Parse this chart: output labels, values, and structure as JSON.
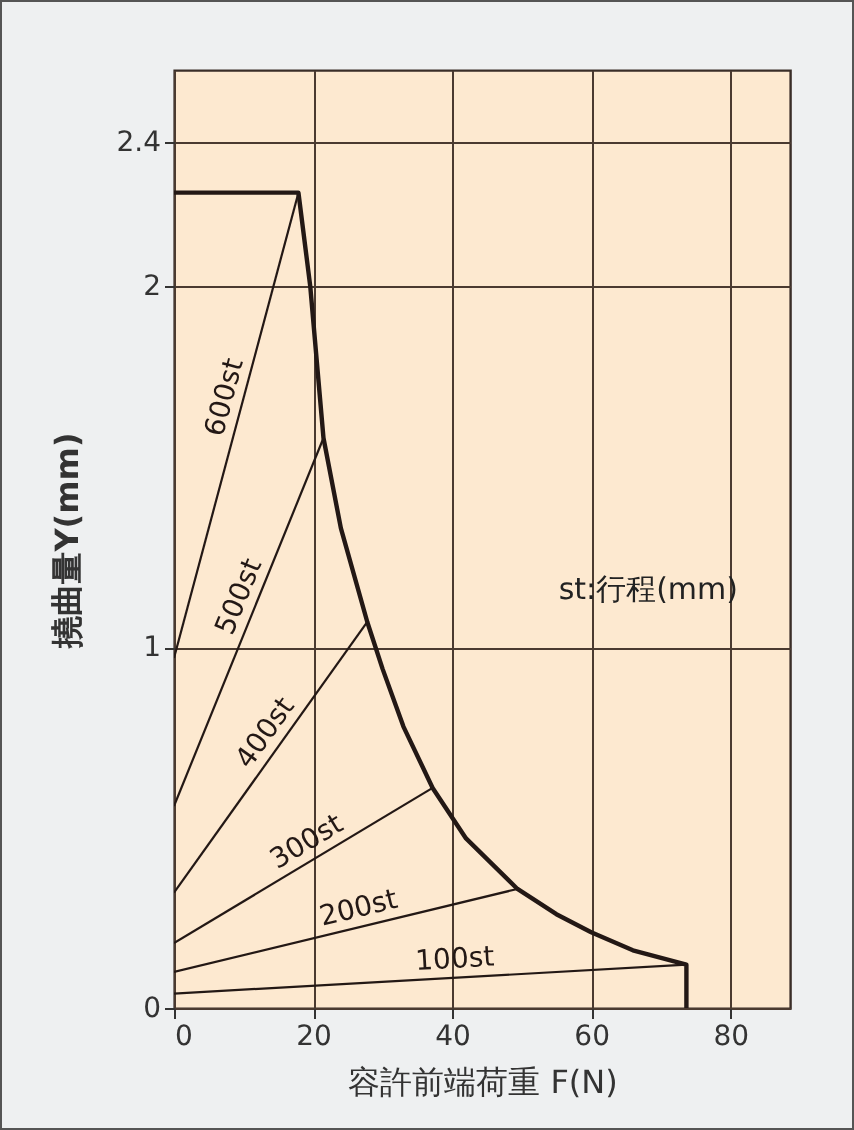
{
  "chart_data": {
    "type": "line",
    "xlabel": "容許前端荷重 F(N)",
    "ylabel": "撓曲量Y(mm)",
    "annotations": [
      "st:行程(mm)"
    ],
    "xlim": [
      0,
      88.6
    ],
    "ylim": [
      0,
      2.6
    ],
    "xticks": [
      0,
      20,
      40,
      60,
      80
    ],
    "yticks": [
      0,
      1,
      2,
      2.4
    ],
    "grid": true,
    "line_style": "solid",
    "marker": "none",
    "series": [
      {
        "color": "#231815",
        "x": [
          0,
          17.9,
          19.6,
          21.5,
          24,
          27.8,
          30,
          33,
          37.2,
          42,
          49.4,
          55,
          60,
          66,
          73.7,
          73.7
        ],
        "values": [
          2.26,
          2.26,
          2.0,
          1.58,
          1.33,
          1.07,
          0.94,
          0.78,
          0.61,
          0.47,
          0.33,
          0.26,
          0.21,
          0.16,
          0.12,
          0
        ]
      },
      {
        "name": "600st",
        "color": "#231815",
        "x": [
          0,
          17.9
        ],
        "values": [
          0.97,
          2.26
        ]
      },
      {
        "name": "500st",
        "color": "#231815",
        "x": [
          0,
          21.5
        ],
        "values": [
          0.56,
          1.58
        ]
      },
      {
        "name": "400st",
        "color": "#231815",
        "x": [
          0,
          27.8
        ],
        "values": [
          0.32,
          1.07
        ]
      },
      {
        "name": "300st",
        "color": "#231815",
        "x": [
          0,
          37.2
        ],
        "values": [
          0.18,
          0.61
        ]
      },
      {
        "name": "200st",
        "color": "#231815",
        "x": [
          0,
          49.4
        ],
        "values": [
          0.1,
          0.33
        ]
      },
      {
        "name": "100st",
        "color": "#231815",
        "x": [
          0,
          73.7
        ],
        "values": [
          0.04,
          0.12
        ]
      }
    ]
  }
}
